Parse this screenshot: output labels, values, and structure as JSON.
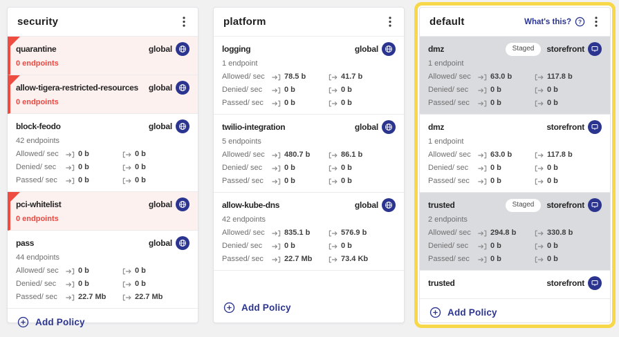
{
  "colors": {
    "accent_navy": "#2b3590",
    "alert_red": "#f0463e",
    "highlight_yellow": "#f8d84b",
    "staged_card_bg": "#d9dbde",
    "alert_card_bg": "#fdf1f0"
  },
  "board": {
    "columns": [
      {
        "title": "security",
        "menu_icon": "kebab-menu-icon",
        "add_policy_label": "Add Policy",
        "highlighted": false,
        "cards": [
          {
            "name": "quarantine",
            "scope": "global",
            "scope_icon": "globe-icon",
            "variant": "alert",
            "endpoints": "0 endpoints",
            "endpoints_alert": true
          },
          {
            "name": "allow-tigera-restricted-resources",
            "scope": "global",
            "scope_icon": "globe-icon",
            "variant": "alert",
            "endpoints": "0 endpoints",
            "endpoints_alert": true
          },
          {
            "name": "block-feodo",
            "scope": "global",
            "scope_icon": "globe-icon",
            "variant": "normal",
            "endpoints": "42 endpoints",
            "endpoints_alert": false,
            "stats": [
              {
                "label": "Allowed/ sec",
                "in": "0 b",
                "out": "0 b"
              },
              {
                "label": "Denied/ sec",
                "in": "0 b",
                "out": "0 b"
              },
              {
                "label": "Passed/ sec",
                "in": "0 b",
                "out": "0 b"
              }
            ]
          },
          {
            "name": "pci-whitelist",
            "scope": "global",
            "scope_icon": "globe-icon",
            "variant": "alert",
            "endpoints": "0 endpoints",
            "endpoints_alert": true
          },
          {
            "name": "pass",
            "scope": "global",
            "scope_icon": "globe-icon",
            "variant": "normal",
            "endpoints": "44 endpoints",
            "endpoints_alert": false,
            "stats": [
              {
                "label": "Allowed/ sec",
                "in": "0 b",
                "out": "0 b"
              },
              {
                "label": "Denied/ sec",
                "in": "0 b",
                "out": "0 b"
              },
              {
                "label": "Passed/ sec",
                "in": "22.7 Mb",
                "out": "22.7 Mb"
              }
            ]
          }
        ]
      },
      {
        "title": "platform",
        "menu_icon": "kebab-menu-icon",
        "add_policy_label": "Add Policy",
        "highlighted": false,
        "cards": [
          {
            "name": "logging",
            "scope": "global",
            "scope_icon": "globe-icon",
            "variant": "normal",
            "endpoints": "1 endpoint",
            "endpoints_alert": false,
            "stats": [
              {
                "label": "Allowed/ sec",
                "in": "78.5 b",
                "out": "41.7 b"
              },
              {
                "label": "Denied/ sec",
                "in": "0 b",
                "out": "0 b"
              },
              {
                "label": "Passed/ sec",
                "in": "0 b",
                "out": "0 b"
              }
            ]
          },
          {
            "name": "twilio-integration",
            "scope": "global",
            "scope_icon": "globe-icon",
            "variant": "normal",
            "endpoints": "5 endpoints",
            "endpoints_alert": false,
            "stats": [
              {
                "label": "Allowed/ sec",
                "in": "480.7 b",
                "out": "86.1 b"
              },
              {
                "label": "Denied/ sec",
                "in": "0 b",
                "out": "0 b"
              },
              {
                "label": "Passed/ sec",
                "in": "0 b",
                "out": "0 b"
              }
            ]
          },
          {
            "name": "allow-kube-dns",
            "scope": "global",
            "scope_icon": "globe-icon",
            "variant": "normal",
            "endpoints": "42 endpoints",
            "endpoints_alert": false,
            "stats": [
              {
                "label": "Allowed/ sec",
                "in": "835.1 b",
                "out": "576.9 b"
              },
              {
                "label": "Denied/ sec",
                "in": "0 b",
                "out": "0 b"
              },
              {
                "label": "Passed/ sec",
                "in": "22.7 Mb",
                "out": "73.4 Kb"
              }
            ]
          }
        ]
      },
      {
        "title": "default",
        "menu_icon": "kebab-menu-icon",
        "whats_this_label": "What's this?",
        "add_policy_label": "Add Policy",
        "highlighted": true,
        "cards": [
          {
            "name": "dmz",
            "scope": "storefront",
            "scope_icon": "monitor-icon",
            "variant": "staged",
            "staged_label": "Staged",
            "endpoints": "1 endpoint",
            "endpoints_alert": false,
            "stats": [
              {
                "label": "Allowed/ sec",
                "in": "63.0 b",
                "out": "117.8 b"
              },
              {
                "label": "Denied/ sec",
                "in": "0 b",
                "out": "0 b"
              },
              {
                "label": "Passed/ sec",
                "in": "0 b",
                "out": "0 b"
              }
            ]
          },
          {
            "name": "dmz",
            "scope": "storefront",
            "scope_icon": "monitor-icon",
            "variant": "normal",
            "endpoints": "1 endpoint",
            "endpoints_alert": false,
            "stats": [
              {
                "label": "Allowed/ sec",
                "in": "63.0 b",
                "out": "117.8 b"
              },
              {
                "label": "Denied/ sec",
                "in": "0 b",
                "out": "0 b"
              },
              {
                "label": "Passed/ sec",
                "in": "0 b",
                "out": "0 b"
              }
            ]
          },
          {
            "name": "trusted",
            "scope": "storefront",
            "scope_icon": "monitor-icon",
            "variant": "staged",
            "staged_label": "Staged",
            "endpoints": "2 endpoints",
            "endpoints_alert": false,
            "stats": [
              {
                "label": "Allowed/ sec",
                "in": "294.8 b",
                "out": "330.8 b"
              },
              {
                "label": "Denied/ sec",
                "in": "0 b",
                "out": "0 b"
              },
              {
                "label": "Passed/ sec",
                "in": "0 b",
                "out": "0 b"
              }
            ]
          },
          {
            "name": "trusted",
            "scope": "storefront",
            "scope_icon": "monitor-icon",
            "variant": "title-only"
          }
        ]
      }
    ]
  }
}
